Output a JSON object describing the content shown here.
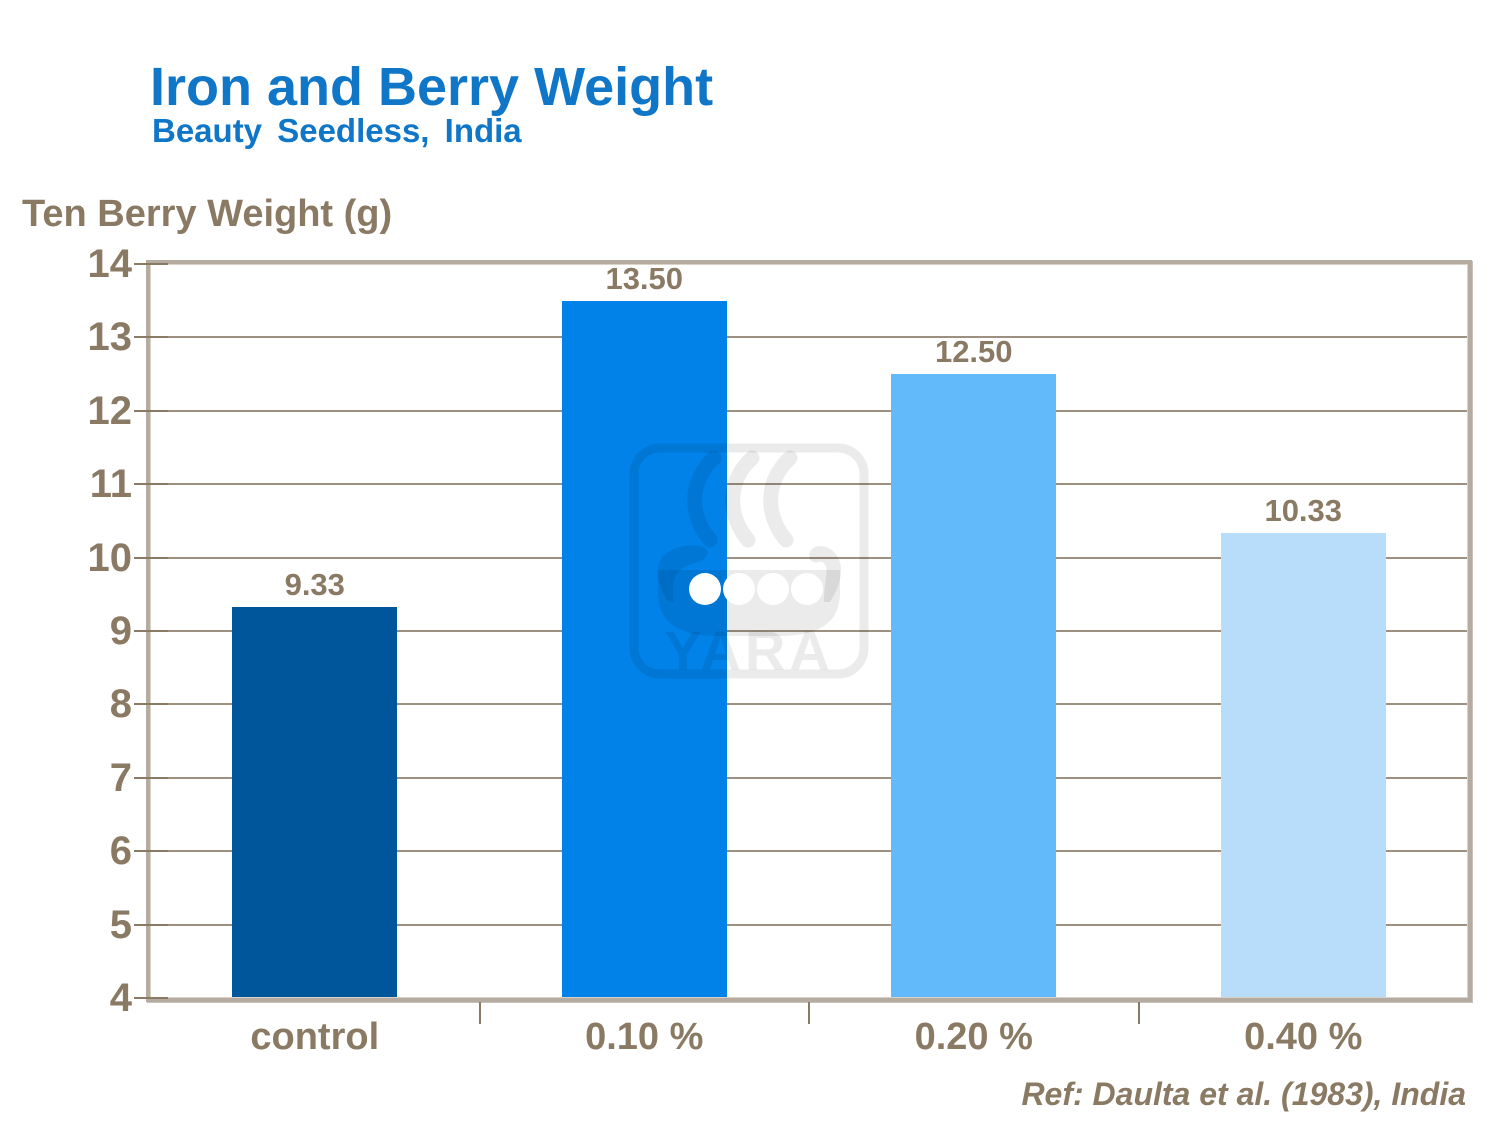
{
  "header": {
    "title": "Iron and Berry Weight",
    "subtitle": "Beauty Seedless, India"
  },
  "footer": {
    "reference": "Ref: Daulta et al. (1983), India"
  },
  "watermark": {
    "name": "yara-viking-ship-logo",
    "text": "YARA"
  },
  "colors": {
    "title_blue": "#1076C8",
    "text_brown": "#8A7A64",
    "grid_brown": "#9D9080",
    "border_taupe": "#B5ABA0",
    "bars": [
      "#00569B",
      "#0082E8",
      "#63BAFA",
      "#B7DDFB"
    ],
    "watermark_gray": "rgba(0,0,0,0.08)"
  },
  "chart_data": {
    "type": "bar",
    "title": "Iron and Berry Weight",
    "subtitle": "Beauty Seedless, India",
    "ylabel": "Ten Berry Weight (g)",
    "xlabel": "",
    "categories": [
      "control",
      "0.10 %",
      "0.20 %",
      "0.40 %"
    ],
    "values": [
      9.33,
      13.5,
      12.5,
      10.33
    ],
    "value_labels": [
      "9.33",
      "13.50",
      "12.50",
      "10.33"
    ],
    "ylim": [
      4,
      14
    ],
    "yticks": [
      4,
      5,
      6,
      7,
      8,
      9,
      10,
      11,
      12,
      13,
      14
    ],
    "grid": "horizontal",
    "legend": "none",
    "reference": "Ref: Daulta et al. (1983), India"
  }
}
